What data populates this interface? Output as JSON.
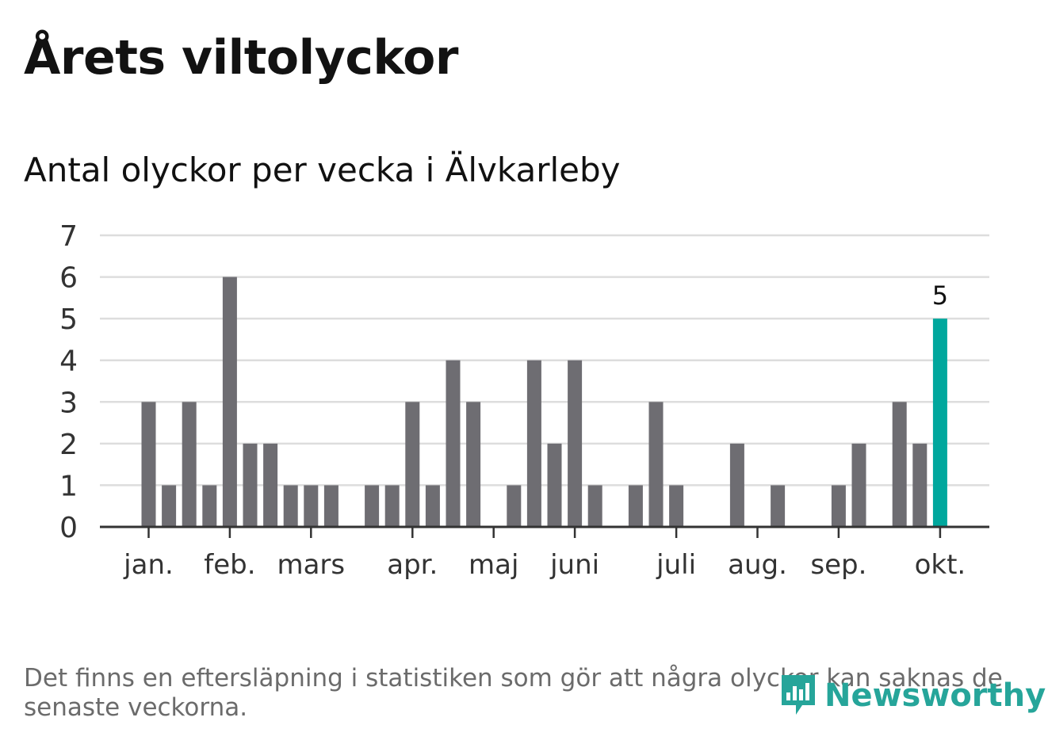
{
  "header": {
    "title": "Årets viltolyckor",
    "subtitle": "Antal olyckor per vecka i Älvkarleby"
  },
  "footnote": "Det finns en eftersläpning i statistiken som gör att några olyckor kan saknas de senaste veckorna.",
  "brand": {
    "name": "Newsworthy",
    "icon": "chart-bubble-logo-icon",
    "color": "#26a59a"
  },
  "colors": {
    "bar": "#6e6d72",
    "highlight": "#00a79d",
    "grid": "#dddddd",
    "axis": "#333333"
  },
  "chart_data": {
    "type": "bar",
    "title": "Antal olyckor per vecka i Älvkarleby",
    "xlabel": "",
    "ylabel": "",
    "ylim": [
      0,
      7
    ],
    "yticks": [
      0,
      1,
      2,
      3,
      4,
      5,
      6,
      7
    ],
    "grid": true,
    "week_range": [
      1,
      40
    ],
    "values": [
      3,
      1,
      3,
      1,
      6,
      2,
      2,
      1,
      1,
      1,
      0,
      1,
      1,
      3,
      1,
      4,
      3,
      0,
      1,
      4,
      2,
      4,
      1,
      0,
      1,
      3,
      1,
      0,
      0,
      2,
      0,
      1,
      0,
      0,
      1,
      2,
      0,
      3,
      2,
      5
    ],
    "highlight_index": 39,
    "highlight_label": "5",
    "month_ticks": [
      {
        "label": "jan.",
        "week": 1
      },
      {
        "label": "feb.",
        "week": 5
      },
      {
        "label": "mars",
        "week": 9
      },
      {
        "label": "apr.",
        "week": 14
      },
      {
        "label": "maj",
        "week": 18
      },
      {
        "label": "juni",
        "week": 22
      },
      {
        "label": "juli",
        "week": 27
      },
      {
        "label": "aug.",
        "week": 31
      },
      {
        "label": "sep.",
        "week": 35
      },
      {
        "label": "okt.",
        "week": 40
      }
    ]
  }
}
